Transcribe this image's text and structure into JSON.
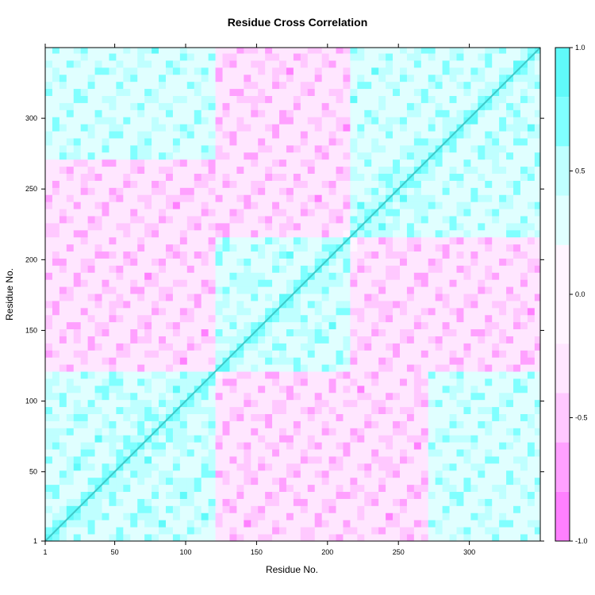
{
  "chart_data": {
    "type": "heatmap",
    "title": "Residue Cross Correlation",
    "xlabel": "Residue No.",
    "ylabel": "Residue No.",
    "xlim": [
      1,
      350
    ],
    "ylim": [
      1,
      350
    ],
    "x_ticks": [
      "1",
      "50",
      "100",
      "150",
      "200",
      "250",
      "300"
    ],
    "y_ticks": [
      "1",
      "50",
      "100",
      "150",
      "200",
      "250",
      "300"
    ],
    "x_tick_values": [
      1,
      50,
      100,
      150,
      200,
      250,
      300
    ],
    "y_tick_values": [
      1,
      50,
      100,
      150,
      200,
      250,
      300
    ],
    "colorbar": {
      "range": [
        -1.0,
        1.0
      ],
      "tick_labels": [
        "1.0",
        "0.5",
        "0.0",
        "-0.5",
        "-1.0"
      ],
      "tick_values": [
        1.0,
        0.5,
        0.0,
        -0.5,
        -1.0
      ],
      "levels": [
        -1.0,
        -0.8,
        -0.6,
        -0.4,
        -0.2,
        0.2,
        0.4,
        0.6,
        0.8,
        1.0
      ],
      "colors": [
        "#ff80ff",
        "#ffa0ff",
        "#ffc8ff",
        "#ffe6ff",
        "#fff5ff",
        "#e0ffff",
        "#bfffff",
        "#80ffff",
        "#60fafa"
      ]
    },
    "domains": [
      {
        "start": 1,
        "end": 120
      },
      {
        "start": 120,
        "end": 218
      },
      {
        "start": 218,
        "end": 270
      },
      {
        "start": 270,
        "end": 350
      }
    ]
  }
}
